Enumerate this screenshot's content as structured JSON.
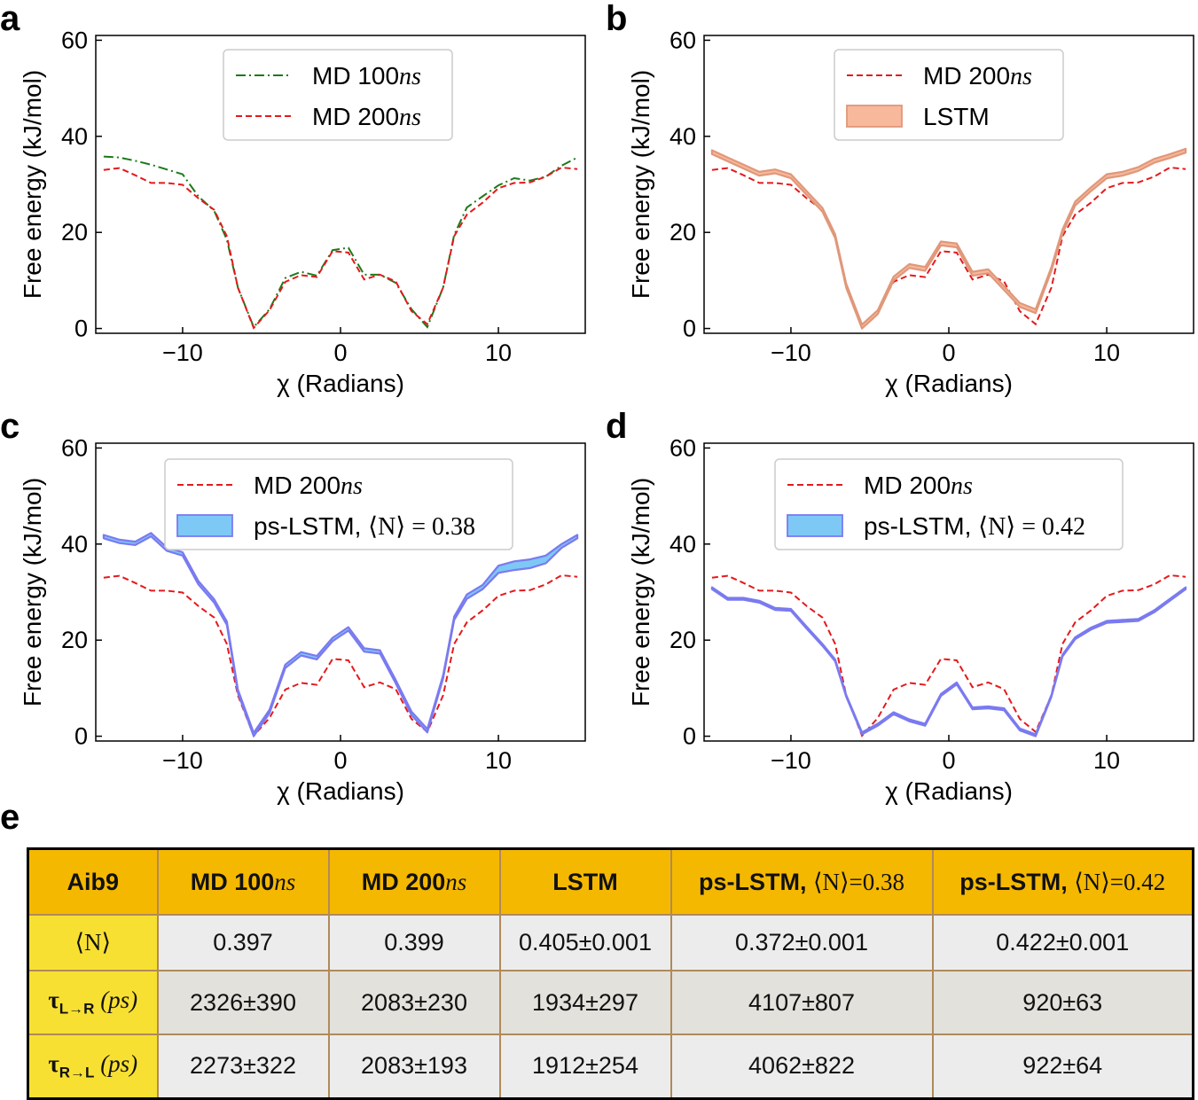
{
  "chart_data": [
    {
      "panel": "a",
      "type": "line",
      "xlabel": "χ (Radians)",
      "ylabel": "Free energy (kJ/mol)",
      "xlim": [
        -15.5,
        15.5
      ],
      "ylim": [
        -1,
        61
      ],
      "xticks": [
        -10,
        0,
        10
      ],
      "xtick_labels": [
        "−10",
        "0",
        "10"
      ],
      "yticks": [
        0,
        20,
        40,
        60
      ],
      "ytick_labels": [
        "0",
        "20",
        "40",
        "60"
      ],
      "legend_position": "top-center",
      "series": [
        {
          "name": "MD 100",
          "name_italic": "ns",
          "style": "dashdot",
          "color": "#1a7a1a",
          "x": [
            -15,
            -14,
            -13,
            -12,
            -11,
            -10,
            -9,
            -8,
            -7.2,
            -6.5,
            -5.5,
            -4.5,
            -3.5,
            -2.5,
            -1.5,
            -0.5,
            0.5,
            1.5,
            2.5,
            3.5,
            4.5,
            5.5,
            6.5,
            7.2,
            8,
            9,
            10,
            11,
            12,
            13,
            14,
            15
          ],
          "y": [
            35.8,
            35.6,
            34.9,
            34.1,
            33.1,
            32.1,
            27.5,
            24.5,
            18.5,
            8.5,
            0.3,
            4,
            10.5,
            11.8,
            11,
            16.3,
            16.8,
            11.2,
            11.2,
            9.5,
            4,
            0.3,
            8.5,
            19.5,
            25.2,
            27.5,
            29.8,
            31.3,
            30.8,
            31.6,
            33.9,
            35.6
          ]
        },
        {
          "name": "MD 200",
          "name_italic": "ns",
          "style": "dashed",
          "color": "#e41a1c",
          "x": [
            -15,
            -14,
            -13,
            -12,
            -11,
            -10,
            -9,
            -8,
            -7.2,
            -6.5,
            -5.5,
            -4.5,
            -3.5,
            -2.5,
            -1.5,
            -0.5,
            0.5,
            1.5,
            2.5,
            3.5,
            4.5,
            5.5,
            6.5,
            7.2,
            8,
            9,
            10,
            11,
            12,
            13,
            14,
            15
          ],
          "y": [
            33,
            33.4,
            31.9,
            30.3,
            30.3,
            29.9,
            27.1,
            24.7,
            19.2,
            8.5,
            0.1,
            3.8,
            9.7,
            11.1,
            10.7,
            16.1,
            15.8,
            10.2,
            11.2,
            9.8,
            3.6,
            0.9,
            8.5,
            19.2,
            23.7,
            26.2,
            29.2,
            30.3,
            30.4,
            31.6,
            33.5,
            33.2
          ]
        }
      ]
    },
    {
      "panel": "b",
      "type": "line",
      "xlabel": "χ (Radians)",
      "ylabel": "Free energy (kJ/mol)",
      "xlim": [
        -15.5,
        15.5
      ],
      "ylim": [
        -1,
        61
      ],
      "xticks": [
        -10,
        0,
        10
      ],
      "xtick_labels": [
        "−10",
        "0",
        "10"
      ],
      "yticks": [
        0,
        20,
        40,
        60
      ],
      "ytick_labels": [
        "0",
        "20",
        "40",
        "60"
      ],
      "legend_position": "top-center",
      "series": [
        {
          "name": "MD 200",
          "name_italic": "ns",
          "style": "dashed",
          "color": "#e41a1c",
          "x": [
            -15,
            -14,
            -13,
            -12,
            -11,
            -10,
            -9,
            -8,
            -7.2,
            -6.5,
            -5.5,
            -4.5,
            -3.5,
            -2.5,
            -1.5,
            -0.5,
            0.5,
            1.5,
            2.5,
            3.5,
            4.5,
            5.5,
            6.5,
            7.2,
            8,
            9,
            10,
            11,
            12,
            13,
            14,
            15
          ],
          "y": [
            33,
            33.4,
            31.9,
            30.3,
            30.3,
            29.9,
            27.1,
            24.7,
            19.2,
            8.5,
            0.1,
            3.8,
            9.7,
            11.1,
            10.7,
            16.1,
            15.8,
            10.2,
            11.2,
            9.8,
            3.6,
            0.9,
            8.5,
            19.2,
            23.7,
            26.2,
            29.2,
            30.3,
            30.4,
            31.6,
            33.5,
            33.2
          ]
        },
        {
          "name": "LSTM",
          "style": "band",
          "fill": "#f8b89c",
          "edge": "#e0987a",
          "x": [
            -15,
            -14,
            -13,
            -12,
            -11,
            -10,
            -9,
            -8,
            -7.2,
            -6.5,
            -5.5,
            -4.5,
            -3.5,
            -2.5,
            -1.5,
            -0.5,
            0.5,
            1.5,
            2.5,
            3.5,
            4.5,
            5.5,
            6.5,
            7.2,
            8,
            9,
            10,
            11,
            12,
            13,
            14,
            15
          ],
          "lower": [
            36.3,
            34.8,
            33.3,
            31.8,
            32.3,
            31.3,
            27.8,
            24.3,
            18.8,
            8.5,
            0,
            3,
            10,
            12.6,
            12,
            17.3,
            16.9,
            11,
            11.5,
            8,
            4.5,
            3.2,
            12,
            19.8,
            25.6,
            28.6,
            31.3,
            31.8,
            32.8,
            34.5,
            35.5,
            36.6
          ],
          "upper": [
            37.1,
            35.6,
            34.1,
            32.6,
            33.1,
            32.1,
            28.6,
            25.1,
            19.6,
            9.3,
            0.8,
            3.8,
            10.8,
            13.4,
            12.8,
            18.1,
            17.7,
            11.8,
            12.3,
            8.8,
            5.3,
            4,
            12.8,
            20.6,
            26.4,
            29.4,
            32.1,
            32.6,
            33.6,
            35.3,
            36.3,
            37.4
          ]
        }
      ]
    },
    {
      "panel": "c",
      "type": "line",
      "xlabel": "χ (Radians)",
      "ylabel": "Free energy (kJ/mol)",
      "xlim": [
        -15.5,
        15.5
      ],
      "ylim": [
        -1,
        61
      ],
      "xticks": [
        -10,
        0,
        10
      ],
      "xtick_labels": [
        "−10",
        "0",
        "10"
      ],
      "yticks": [
        0,
        20,
        40,
        60
      ],
      "ytick_labels": [
        "0",
        "20",
        "40",
        "60"
      ],
      "legend_position": "top-center",
      "series": [
        {
          "name": "MD 200",
          "name_italic": "ns",
          "style": "dashed",
          "color": "#e41a1c",
          "x": [
            -15,
            -14,
            -13,
            -12,
            -11,
            -10,
            -9,
            -8,
            -7.2,
            -6.5,
            -5.5,
            -4.5,
            -3.5,
            -2.5,
            -1.5,
            -0.5,
            0.5,
            1.5,
            2.5,
            3.5,
            4.5,
            5.5,
            6.5,
            7.2,
            8,
            9,
            10,
            11,
            12,
            13,
            14,
            15
          ],
          "y": [
            33,
            33.4,
            31.9,
            30.3,
            30.3,
            29.9,
            27.1,
            24.7,
            19.2,
            8.5,
            0.1,
            3.8,
            9.7,
            11.1,
            10.7,
            16.1,
            15.8,
            10.2,
            11.2,
            9.8,
            3.6,
            0.9,
            8.5,
            19.2,
            23.7,
            26.2,
            29.2,
            30.3,
            30.4,
            31.6,
            33.5,
            33.2
          ]
        },
        {
          "name": "ps-LSTM, ",
          "name_math": "⟨N⟩ = 0.38",
          "style": "band",
          "fill": "#7ec8f6",
          "edge": "#7a7af0",
          "x": [
            -15,
            -14,
            -13,
            -12,
            -11,
            -10,
            -9,
            -8,
            -7.2,
            -6.5,
            -5.5,
            -4.5,
            -3.5,
            -2.5,
            -1.5,
            -0.5,
            0.5,
            1.5,
            2.5,
            3.5,
            4.5,
            5.5,
            6.5,
            7.2,
            8,
            9,
            10,
            11,
            12,
            13,
            14,
            15
          ],
          "lower": [
            41.2,
            40.2,
            39.8,
            41.6,
            38.6,
            37.6,
            31.6,
            27.8,
            23.2,
            9,
            0,
            4.8,
            14.2,
            16.8,
            16,
            19.8,
            22,
            17.6,
            17.2,
            11,
            4.4,
            0.8,
            12,
            24.2,
            28.6,
            30.6,
            34,
            34.6,
            35,
            36,
            39.2,
            41.2
          ],
          "upper": [
            41.9,
            40.9,
            40.5,
            42.3,
            39.3,
            38.3,
            32.3,
            28.5,
            23.9,
            9.7,
            0.7,
            5.5,
            14.9,
            17.5,
            16.7,
            20.5,
            22.7,
            18.3,
            17.9,
            11.7,
            5.1,
            1.5,
            12.7,
            24.9,
            29.5,
            31.5,
            35.5,
            36.4,
            36.8,
            37.6,
            40,
            41.9
          ]
        }
      ]
    },
    {
      "panel": "d",
      "type": "line",
      "xlabel": "χ (Radians)",
      "ylabel": "Free energy (kJ/mol)",
      "xlim": [
        -15.5,
        15.5
      ],
      "ylim": [
        -1,
        61
      ],
      "xticks": [
        -10,
        0,
        10
      ],
      "xtick_labels": [
        "−10",
        "0",
        "10"
      ],
      "yticks": [
        0,
        20,
        40,
        60
      ],
      "ytick_labels": [
        "0",
        "20",
        "40",
        "60"
      ],
      "legend_position": "top-center",
      "series": [
        {
          "name": "MD 200",
          "name_italic": "ns",
          "style": "dashed",
          "color": "#e41a1c",
          "x": [
            -15,
            -14,
            -13,
            -12,
            -11,
            -10,
            -9,
            -8,
            -7.2,
            -6.5,
            -5.5,
            -4.5,
            -3.5,
            -2.5,
            -1.5,
            -0.5,
            0.5,
            1.5,
            2.5,
            3.5,
            4.5,
            5.5,
            6.5,
            7.2,
            8,
            9,
            10,
            11,
            12,
            13,
            14,
            15
          ],
          "y": [
            33,
            33.4,
            31.9,
            30.3,
            30.3,
            29.9,
            27.1,
            24.7,
            19.2,
            8.5,
            0.1,
            3.8,
            9.7,
            11.1,
            10.7,
            16.1,
            15.8,
            10.2,
            11.2,
            9.8,
            3.6,
            0.9,
            8.5,
            19.2,
            23.7,
            26.2,
            29.2,
            30.3,
            30.4,
            31.6,
            33.5,
            33.2
          ]
        },
        {
          "name": "ps-LSTM, ",
          "name_math": "⟨N⟩ = 0.42",
          "style": "band",
          "fill": "#7ec8f6",
          "edge": "#7a7af0",
          "x": [
            -15,
            -14,
            -13,
            -12,
            -11,
            -10,
            -9,
            -8,
            -7.2,
            -6.5,
            -5.5,
            -4.5,
            -3.5,
            -2.5,
            -1.5,
            -0.5,
            0.5,
            1.5,
            2.5,
            3.5,
            4.5,
            5.5,
            6.5,
            7.2,
            8,
            9,
            10,
            11,
            12,
            13,
            14,
            15
          ],
          "lower": [
            30.6,
            28.4,
            28.4,
            27.8,
            26.3,
            26.1,
            22.4,
            18.8,
            15.6,
            8.2,
            0.4,
            2.2,
            4.6,
            3.1,
            2.2,
            8.4,
            10.8,
            5.6,
            5.8,
            5.4,
            1.2,
            0,
            8.2,
            16.6,
            20.2,
            22.2,
            23.6,
            23.8,
            24,
            25.8,
            28.2,
            30.6
          ],
          "upper": [
            31,
            28.8,
            28.8,
            28.2,
            26.7,
            26.5,
            22.8,
            19.2,
            16,
            8.6,
            0.8,
            2.6,
            5,
            3.5,
            2.6,
            8.8,
            11.2,
            6,
            6.2,
            5.8,
            1.6,
            0.4,
            8.6,
            17,
            20.6,
            22.6,
            24,
            24.2,
            24.4,
            26.2,
            28.6,
            31
          ]
        }
      ]
    }
  ],
  "panel_e": {
    "label": "e",
    "headers": [
      {
        "text": "Aib9",
        "math": ""
      },
      {
        "text": "MD 100",
        "math": "ns"
      },
      {
        "text": "MD 200",
        "math": "ns"
      },
      {
        "text": "LSTM",
        "math": ""
      },
      {
        "text": "ps-LSTM, ",
        "math": "⟨N⟩=0.38"
      },
      {
        "text": "ps-LSTM, ",
        "math": "⟨N⟩=0.42"
      }
    ],
    "rows": [
      {
        "head_math": "⟨N⟩",
        "head_sub": "",
        "head_unit": "",
        "cells": [
          "0.397",
          "0.399",
          "0.405±0.001",
          "0.372±0.001",
          "0.422±0.001"
        ]
      },
      {
        "head_math": "τ",
        "head_sub": "L→R",
        "head_unit": "(ps)",
        "cells": [
          "2326±390",
          "2083±230",
          "1934±297",
          "4107±807",
          "920±63"
        ]
      },
      {
        "head_math": "τ",
        "head_sub": "R→L",
        "head_unit": "(ps)",
        "cells": [
          "2273±322",
          "2083±193",
          "1912±254",
          "4062±822",
          "922±64"
        ]
      }
    ]
  }
}
